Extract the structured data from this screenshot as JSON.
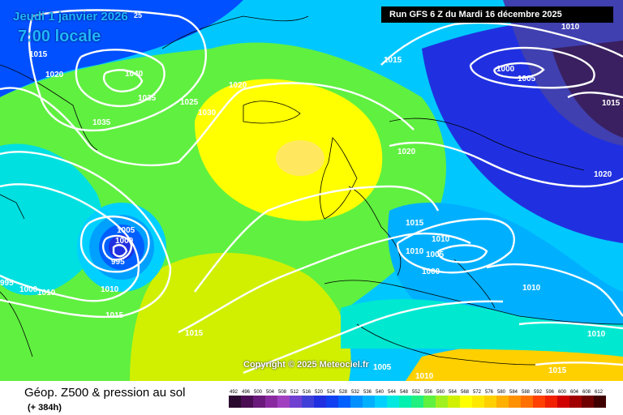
{
  "header": {
    "date": "Jeudi 1 janvier 2026",
    "date_suffix": "25",
    "time": "7:00 locale",
    "run": "Run GFS 6 Z du Mardi 16 décembre 2025"
  },
  "copyright": "Copyright © 2025 Meteociel.fr",
  "footer": {
    "title": "Géop. Z500 & pression au sol",
    "lead": "(+ 384h)"
  },
  "isobar_labels": [
    "1015",
    "1020",
    "1040",
    "1035",
    "1025",
    "1030",
    "1035",
    "1015",
    "1020",
    "1000",
    "1005",
    "1010",
    "1015",
    "1020",
    "1020",
    "1015",
    "1005",
    "1000",
    "995",
    "995",
    "1000",
    "1010",
    "1010",
    "1015",
    "1010",
    "1005",
    "1000",
    "1010",
    "1015",
    "1010",
    "1005",
    "1010",
    "1015",
    "1010"
  ],
  "scale": {
    "values": [
      "492",
      "496",
      "500",
      "504",
      "508",
      "512",
      "516",
      "520",
      "524",
      "528",
      "532",
      "536",
      "540",
      "544",
      "548",
      "552",
      "556",
      "560",
      "564",
      "568",
      "572",
      "576",
      "580",
      "584",
      "588",
      "592",
      "596",
      "600",
      "604",
      "608",
      "612"
    ],
    "colors": [
      "#2a0a2e",
      "#4a0c52",
      "#6a1a7a",
      "#8a2aa0",
      "#a040c0",
      "#7040d0",
      "#4040d8",
      "#2030e0",
      "#1040f0",
      "#0060ff",
      "#0090ff",
      "#00b0ff",
      "#00d0ff",
      "#00e8e0",
      "#00f0b0",
      "#20f080",
      "#60f040",
      "#a0f020",
      "#d0f000",
      "#ffff00",
      "#ffe800",
      "#ffd000",
      "#ffb000",
      "#ff9000",
      "#ff7000",
      "#ff4000",
      "#f02000",
      "#d00000",
      "#a00000",
      "#700000",
      "#400000"
    ]
  },
  "map_colors": {
    "coast": "#000000",
    "isobar": "#ffffff",
    "low_center": "#1040f0",
    "high_center": "#ffff40"
  }
}
